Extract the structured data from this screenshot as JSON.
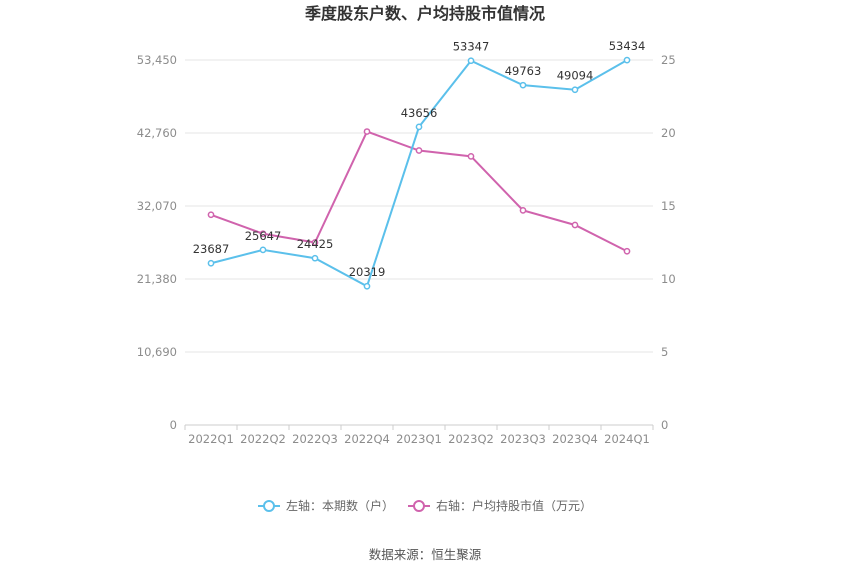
{
  "chart_data": {
    "type": "line",
    "title": "季度股东户数、户均持股市值情况",
    "categories": [
      "2022Q1",
      "2022Q2",
      "2022Q3",
      "2022Q4",
      "2023Q1",
      "2023Q2",
      "2023Q3",
      "2023Q4",
      "2024Q1"
    ],
    "left_axis": {
      "ticks": [
        "0",
        "10,690",
        "21,380",
        "32,070",
        "42,760",
        "53,450"
      ],
      "ylim": [
        0,
        53450
      ]
    },
    "right_axis": {
      "ticks": [
        "0",
        "5",
        "10",
        "15",
        "20",
        "25"
      ],
      "ylim": [
        0,
        25
      ]
    },
    "series": [
      {
        "name": "左轴：本期数（户）",
        "axis": "left",
        "color": "#5bc0eb",
        "values": [
          23687,
          25647,
          24425,
          20319,
          43656,
          53347,
          49763,
          49094,
          53434
        ],
        "labels": [
          "23687",
          "25647",
          "24425",
          "20319",
          "43656",
          "53347",
          "49763",
          "49094",
          "53434"
        ]
      },
      {
        "name": "右轴：户均持股市值（万元）",
        "axis": "right",
        "color": "#d063ad",
        "values": [
          14.4,
          13.1,
          12.5,
          20.1,
          18.8,
          18.4,
          14.7,
          13.7,
          11.9
        ]
      }
    ],
    "grid": true,
    "legend_position": "bottom",
    "source": "数据来源：恒生聚源"
  }
}
